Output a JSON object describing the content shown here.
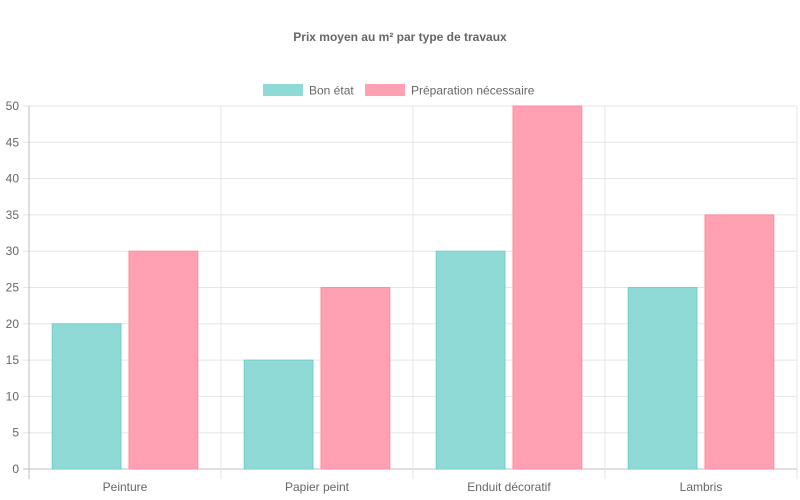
{
  "chart_data": {
    "type": "bar",
    "title": "Prix moyen au m² par type de travaux",
    "categories": [
      "Peinture",
      "Papier peint",
      "Enduit décoratif",
      "Lambris"
    ],
    "series": [
      {
        "name": "Bon état",
        "values": [
          20,
          15,
          30,
          25
        ],
        "color": "#8fd9d6",
        "border": "#74cfcc"
      },
      {
        "name": "Préparation nécessaire",
        "values": [
          30,
          25,
          50,
          35
        ],
        "color": "#ffa0b3",
        "border": "#ff8aa2"
      }
    ],
    "ylim": [
      0,
      50
    ],
    "ytick_step": 5,
    "grid": true,
    "legend_position": "top"
  }
}
